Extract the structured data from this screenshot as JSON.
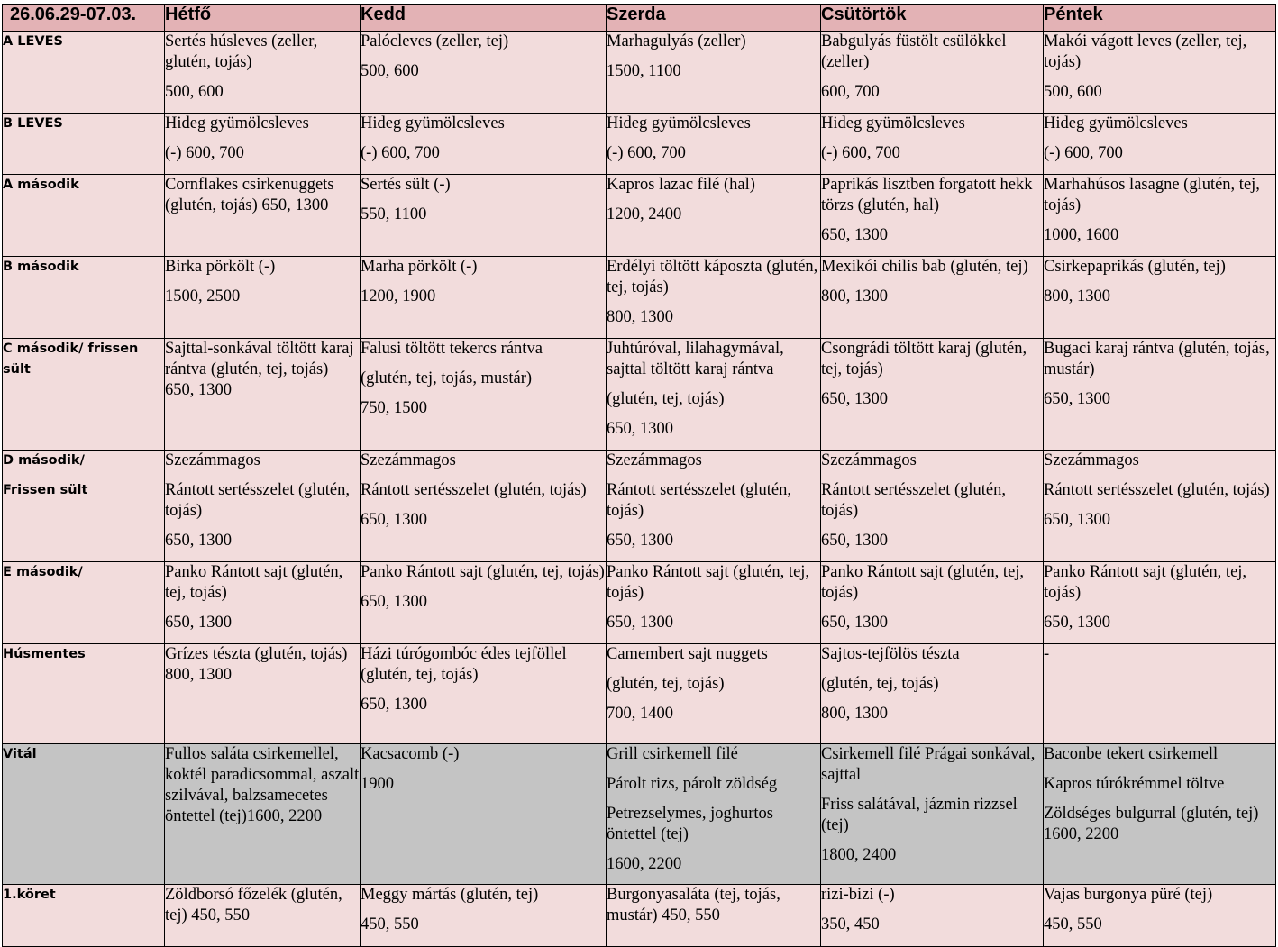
{
  "header": {
    "date": "26.06.29-07.03.",
    "days": [
      "Hétfő",
      "Kedd",
      "Szerda",
      "Csütörtök",
      "Péntek"
    ]
  },
  "rows": [
    {
      "label": "A LEVES",
      "cells": [
        [
          "Sertés húsleves (zeller, glutén, tojás)",
          "500, 600"
        ],
        [
          "Palócleves (zeller, tej)",
          "500, 600"
        ],
        [
          "Marhagulyás (zeller)",
          "1500, 1100"
        ],
        [
          "Babgulyás füstölt csülökkel (zeller)",
          "600, 700"
        ],
        [
          "Makói vágott leves (zeller, tej, tojás)",
          "500, 600"
        ]
      ]
    },
    {
      "label": "B LEVES",
      "cells": [
        [
          "Hideg gyümölcsleves",
          "(-) 600, 700"
        ],
        [
          "Hideg gyümölcsleves",
          "(-) 600, 700"
        ],
        [
          "Hideg gyümölcsleves",
          "(-) 600, 700"
        ],
        [
          "Hideg gyümölcsleves",
          "(-) 600, 700"
        ],
        [
          "Hideg gyümölcsleves",
          "(-) 600, 700"
        ]
      ]
    },
    {
      "label": "A második",
      "cells": [
        [
          "Cornflakes csirkenuggets (glutén, tojás) 650, 1300"
        ],
        [
          "Sertés sült (-)",
          "550, 1100"
        ],
        [
          "Kapros lazac filé (hal)",
          "1200, 2400"
        ],
        [
          "Paprikás lisztben forgatott hekk törzs (glutén, hal)",
          "650, 1300"
        ],
        [
          "Marhahúsos lasagne (glutén, tej, tojás)",
          "1000, 1600"
        ]
      ]
    },
    {
      "label": "B második",
      "cells": [
        [
          "Birka pörkölt (-)",
          "1500, 2500"
        ],
        [
          "Marha pörkölt (-)",
          "1200, 1900"
        ],
        [
          "Erdélyi töltött káposzta (glutén, tej, tojás)",
          "800, 1300"
        ],
        [
          "Mexikói chilis bab (glutén, tej)",
          "800, 1300"
        ],
        [
          "Csirkepaprikás (glutén, tej)",
          "800, 1300"
        ]
      ]
    },
    {
      "label": "C második/ frissen sült",
      "cells": [
        [
          "Sajttal-sonkával töltött karaj rántva (glutén, tej, tojás) 650, 1300"
        ],
        [
          "Falusi töltött tekercs rántva",
          "(glutén, tej, tojás, mustár)",
          "750, 1500"
        ],
        [
          "Juhtúróval, lilahagymával, sajttal töltött karaj rántva",
          "(glutén, tej, tojás)",
          "650, 1300"
        ],
        [
          "Csongrádi töltött karaj (glutén, tej, tojás)",
          "650, 1300"
        ],
        [
          "Bugaci karaj rántva (glutén, tojás, mustár)",
          "650, 1300"
        ]
      ]
    },
    {
      "label": "D második/",
      "label2": "Frissen sült",
      "cells": [
        [
          "Szezámmagos",
          "Rántott sertésszelet (glutén, tojás)",
          "650, 1300"
        ],
        [
          "Szezámmagos",
          "Rántott sertésszelet (glutén, tojás)",
          "650, 1300"
        ],
        [
          "Szezámmagos",
          "Rántott sertésszelet (glutén, tojás)",
          "650, 1300"
        ],
        [
          "Szezámmagos",
          "Rántott sertésszelet (glutén, tojás)",
          "650, 1300"
        ],
        [
          "Szezámmagos",
          "Rántott sertésszelet (glutén, tojás)",
          "650, 1300"
        ]
      ]
    },
    {
      "label": "E második/",
      "cells": [
        [
          "Panko Rántott sajt (glutén, tej, tojás)",
          "650, 1300"
        ],
        [
          "Panko Rántott sajt (glutén, tej, tojás)",
          "650, 1300"
        ],
        [
          "Panko Rántott sajt (glutén, tej, tojás)",
          "650, 1300"
        ],
        [
          "Panko Rántott sajt (glutén, tej, tojás)",
          "650, 1300"
        ],
        [
          "Panko Rántott sajt (glutén, tej, tojás)",
          "650, 1300"
        ]
      ]
    },
    {
      "label": "Húsmentes",
      "cells": [
        [
          "Grízes tészta (glutén, tojás) 800, 1300"
        ],
        [
          "Házi túrógombóc édes tejföllel (glutén, tej, tojás)",
          "650, 1300"
        ],
        [
          "Camembert sajt nuggets",
          "(glutén, tej, tojás)",
          "700, 1400"
        ],
        [
          "Sajtos-tejfölös tészta",
          "(glutén, tej, tojás)",
          "800, 1300"
        ],
        [
          "-"
        ]
      ]
    },
    {
      "label": "Vitál",
      "cells": [
        [
          "Fullos saláta csirkemellel, koktél paradicsommal, aszalt szilvával, balzsamecetes öntettel (tej)1600, 2200"
        ],
        [
          "Kacsacomb (-)",
          "1900"
        ],
        [
          "Grill csirkemell filé",
          "Párolt rizs, párolt zöldség",
          "Petrezselymes, joghurtos öntettel (tej)",
          "1600, 2200"
        ],
        [
          "Csirkemell filé Prágai sonkával, sajttal",
          "Friss salátával, jázmin rizzsel (tej)",
          "1800, 2400"
        ],
        [
          "Baconbe tekert csirkemell",
          "Kapros túrókrémmel töltve",
          "Zöldséges bulgurral (glutén, tej) 1600, 2200"
        ]
      ]
    },
    {
      "label": "1.köret",
      "cells": [
        [
          "Zöldborsó főzelék (glutén, tej) 450, 550"
        ],
        [
          "Meggy mártás (glutén, tej)",
          "450, 550"
        ],
        [
          "Burgonyasaláta (tej, tojás, mustár) 450, 550"
        ],
        [
          "rizi-bizi (-)",
          "350, 450"
        ],
        [
          "Vajas burgonya püré (tej)",
          "450, 550"
        ]
      ]
    }
  ]
}
